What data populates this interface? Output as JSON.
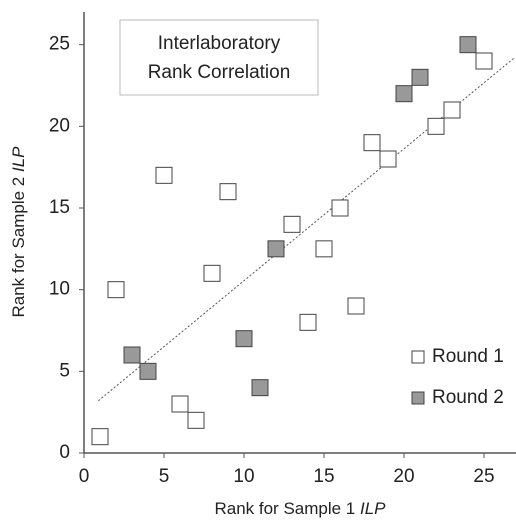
{
  "chart_data": {
    "type": "scatter",
    "title": [
      "Interlaboratory",
      "Rank Correlation"
    ],
    "x_label": {
      "text": "Rank for Sample 1",
      "italic": "ILP"
    },
    "y_label": {
      "text": "Rank for Sample 2",
      "italic": "ILP"
    },
    "xlim": [
      0,
      27
    ],
    "ylim": [
      0,
      27
    ],
    "xticks": [
      0,
      5,
      10,
      15,
      20,
      25
    ],
    "yticks": [
      0,
      5,
      10,
      15,
      20,
      25
    ],
    "legend": "bottom-right",
    "series": [
      {
        "name": "Round 1",
        "color": "#ffffff",
        "x": [
          1,
          2,
          5,
          6,
          7,
          8,
          9,
          13,
          14,
          15,
          16,
          17,
          18,
          19,
          22,
          23,
          25
        ],
        "values": [
          1,
          10,
          17,
          3,
          2,
          11,
          16,
          14,
          8,
          12.5,
          15,
          9,
          19,
          18,
          20,
          21,
          24
        ]
      },
      {
        "name": "Round 2",
        "color": "#999999",
        "x": [
          3,
          4,
          10,
          11,
          12,
          20,
          21,
          24
        ],
        "values": [
          6,
          5,
          7,
          4,
          12.5,
          22,
          23,
          25
        ]
      }
    ],
    "trendline": {
      "x": [
        0.9,
        26.9
      ],
      "values": [
        3.2,
        24.2
      ]
    }
  }
}
